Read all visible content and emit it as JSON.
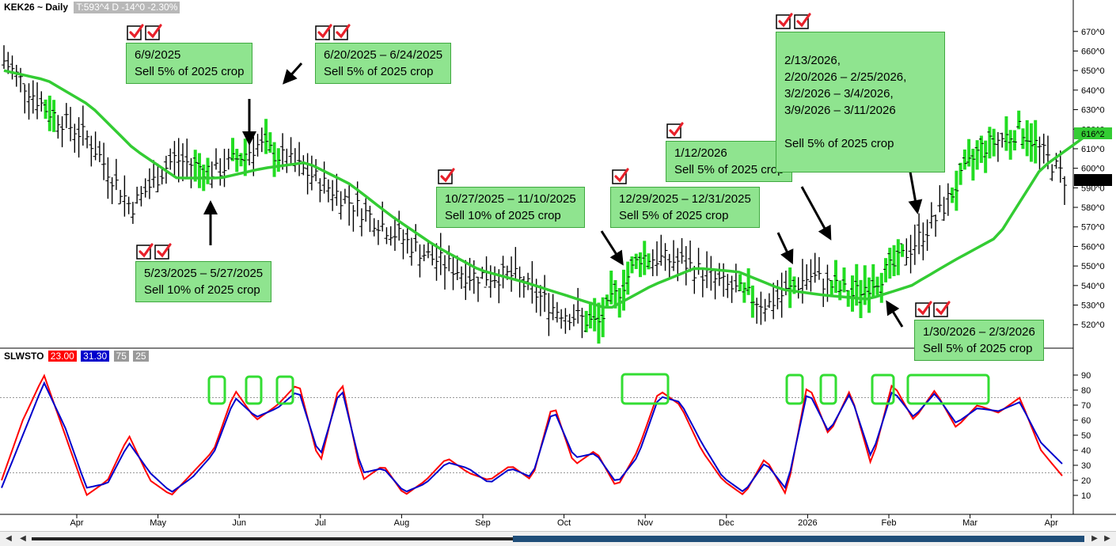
{
  "header": {
    "symbol": "KEK26 ~ Daily",
    "quote": "T:593^4 D  -14^0  -2.30%"
  },
  "indicator": {
    "name": "SLWSTO",
    "k_value": "23.00",
    "d_value": "31.30",
    "upper": "75",
    "lower": "25",
    "k_color": "#ff0000",
    "d_color": "#0000cc"
  },
  "colors": {
    "note_bg": "#8fe48f",
    "ma_line": "#33cc33",
    "highlight_bar": "#22dd22",
    "check_mark": "#e8202a"
  },
  "annotations": [
    {
      "dates": "6/9/2025",
      "action": "Sell 5% of 2025 crop"
    },
    {
      "dates": "6/20/2025 – 6/24/2025",
      "action": "Sell 5% of 2025 crop"
    },
    {
      "dates": "5/23/2025 – 5/27/2025",
      "action": "Sell 10% of 2025 crop"
    },
    {
      "dates": "10/27/2025 – 11/10/2025",
      "action": "Sell 10% of 2025 crop"
    },
    {
      "dates": "12/29/2025 – 12/31/2025",
      "action": "Sell 5% of 2025 crop"
    },
    {
      "dates": "1/12/2026",
      "action": "Sell 5% of 2025 crop"
    },
    {
      "dates": "2/13/2026,\n2/20/2026 – 2/25/2026,\n3/2/2026  – 3/4/2026,\n3/9/2026 – 3/11/2026",
      "action": "Sell 5% of 2025 crop"
    },
    {
      "dates": "1/30/2026 – 2/3/2026",
      "action": "Sell 5% of 2025 crop"
    }
  ],
  "chart_data": [
    {
      "type": "line",
      "title": "KEK26 ~ Daily",
      "series": [
        {
          "name": "",
          "kind": "ohlc-bars",
          "x": [
            "Apr",
            "Apr",
            "May",
            "May",
            "May",
            "Jun",
            "Jun",
            "Jul",
            "Jul",
            "Aug",
            "Aug",
            "Sep",
            "Sep",
            "Oct",
            "Oct",
            "Nov",
            "Nov",
            "Dec",
            "Dec",
            "2026",
            "2026",
            "Feb",
            "Feb",
            "Mar",
            "Mar",
            "Apr"
          ],
          "values": [
            655,
            630,
            615,
            580,
            605,
            598,
            612,
            600,
            585,
            570,
            555,
            545,
            545,
            528,
            520,
            555,
            552,
            540,
            530,
            545,
            535,
            550,
            575,
            610,
            620,
            595
          ]
        },
        {
          "name": "",
          "kind": "moving-average",
          "values": [
            650,
            645,
            632,
            610,
            595,
            595,
            600,
            603,
            592,
            575,
            560,
            548,
            542,
            535,
            528,
            540,
            549,
            547,
            538,
            535,
            533,
            540,
            553,
            565,
            600,
            616
          ]
        }
      ],
      "ylim": [
        512,
        678
      ],
      "yticks": [
        "670^0",
        "660^0",
        "650^0",
        "640^0",
        "630^0",
        "620^0",
        "610^0",
        "600^0",
        "590^0",
        "580^0",
        "570^0",
        "560^0",
        "550^0",
        "540^0",
        "530^0",
        "520^0"
      ],
      "price_tags": [
        "616^2",
        "593^4"
      ],
      "months": [
        "Apr",
        "May",
        "Jun",
        "Jul",
        "Aug",
        "Sep",
        "Oct",
        "Nov",
        "Dec",
        "2026",
        "Feb",
        "Mar",
        "Apr"
      ]
    },
    {
      "type": "line",
      "title": "SLWSTO",
      "series": [
        {
          "name": "",
          "values": [
            20,
            60,
            90,
            50,
            10,
            20,
            50,
            20,
            10,
            25,
            40,
            80,
            60,
            70,
            85,
            30,
            88,
            20,
            30,
            10,
            20,
            35,
            25,
            20,
            30,
            20,
            72,
            30,
            40,
            15,
            40,
            80,
            70,
            40,
            20,
            10,
            35,
            10,
            85,
            50,
            80,
            30,
            85,
            60,
            80,
            55,
            70,
            65,
            75,
            40,
            23
          ]
        },
        {
          "name": "",
          "values": [
            15,
            50,
            85,
            55,
            15,
            18,
            45,
            25,
            12,
            22,
            38,
            75,
            62,
            68,
            80,
            35,
            83,
            25,
            28,
            12,
            18,
            32,
            28,
            18,
            28,
            22,
            68,
            35,
            38,
            18,
            36,
            76,
            72,
            45,
            22,
            12,
            32,
            14,
            80,
            52,
            78,
            35,
            80,
            62,
            78,
            58,
            68,
            66,
            72,
            45,
            31
          ]
        }
      ],
      "ylim": [
        0,
        100
      ],
      "yticks": [
        "90",
        "80",
        "70",
        "60",
        "50",
        "40",
        "30",
        "20",
        "10"
      ],
      "guide_lines": [
        75,
        25
      ]
    }
  ]
}
